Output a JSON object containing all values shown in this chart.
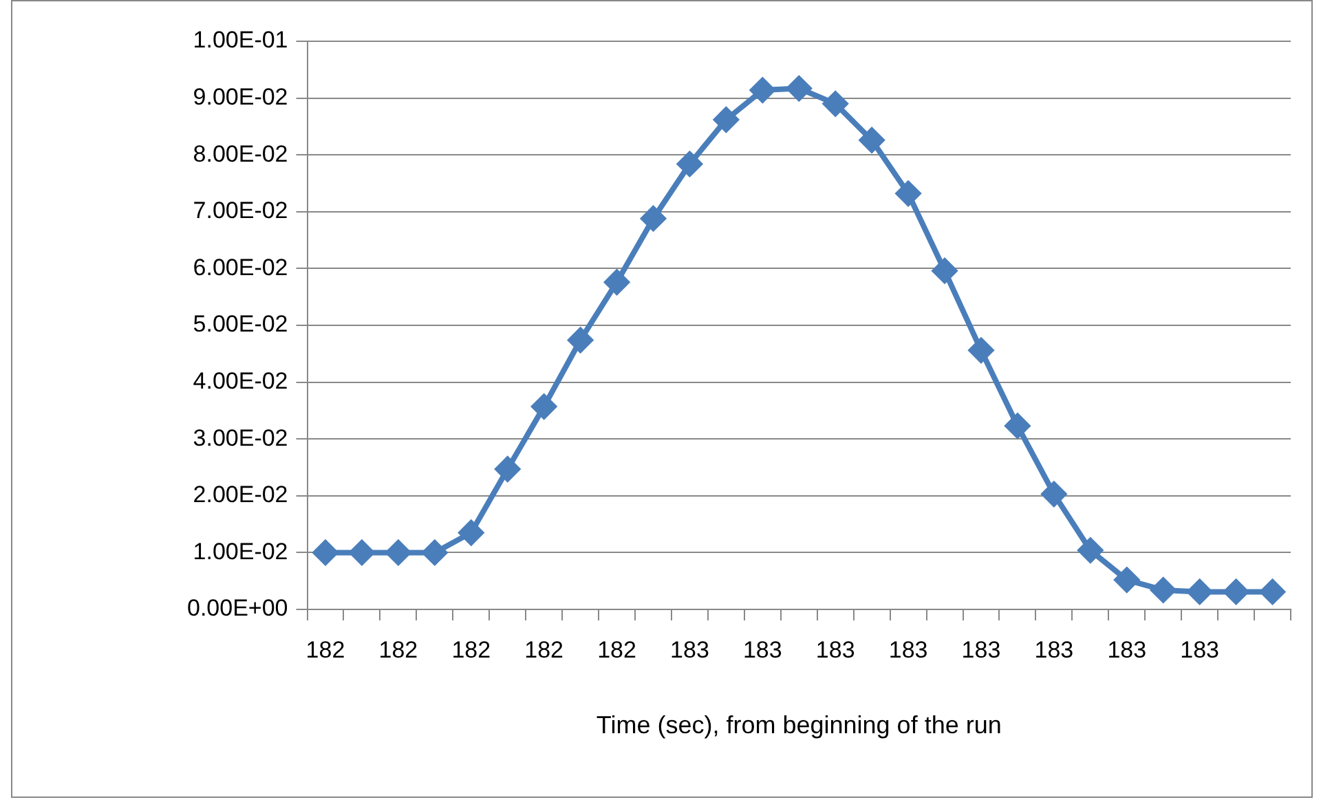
{
  "chart_data": {
    "type": "line",
    "xlabel": "Time (sec), from beginning of the run",
    "categories": [
      "182",
      null,
      "182",
      null,
      "182",
      null,
      "182",
      null,
      "182",
      null,
      "183",
      null,
      "183",
      null,
      "183",
      null,
      "183",
      null,
      "183",
      null,
      "183",
      null,
      "183",
      null,
      "183",
      null,
      null
    ],
    "series": [
      {
        "color": "#4a7ebb",
        "values": [
          0.01,
          0.01,
          0.01,
          0.01,
          0.0135,
          0.0247,
          0.0357,
          0.0474,
          0.0576,
          0.0688,
          0.0784,
          0.0862,
          0.0914,
          0.0917,
          0.089,
          0.0826,
          0.0732,
          0.0596,
          0.0456,
          0.0323,
          0.0203,
          0.0104,
          0.0052,
          0.0034,
          0.0031,
          0.0031,
          0.0031
        ]
      }
    ],
    "ylim": [
      0,
      0.1
    ],
    "yticks": [
      {
        "value": 0,
        "label": "0.00E+00"
      },
      {
        "value": 0.01,
        "label": "1.00E-02"
      },
      {
        "value": 0.02,
        "label": "2.00E-02"
      },
      {
        "value": 0.03,
        "label": "3.00E-02"
      },
      {
        "value": 0.04,
        "label": "4.00E-02"
      },
      {
        "value": 0.05,
        "label": "5.00E-02"
      },
      {
        "value": 0.06,
        "label": "6.00E-02"
      },
      {
        "value": 0.07,
        "label": "7.00E-02"
      },
      {
        "value": 0.08,
        "label": "8.00E-02"
      },
      {
        "value": 0.09,
        "label": "9.00E-02"
      },
      {
        "value": 0.1,
        "label": "1.00E-01"
      }
    ],
    "grid": "y",
    "legend": false,
    "marker": "diamond",
    "line_style": "solid"
  }
}
